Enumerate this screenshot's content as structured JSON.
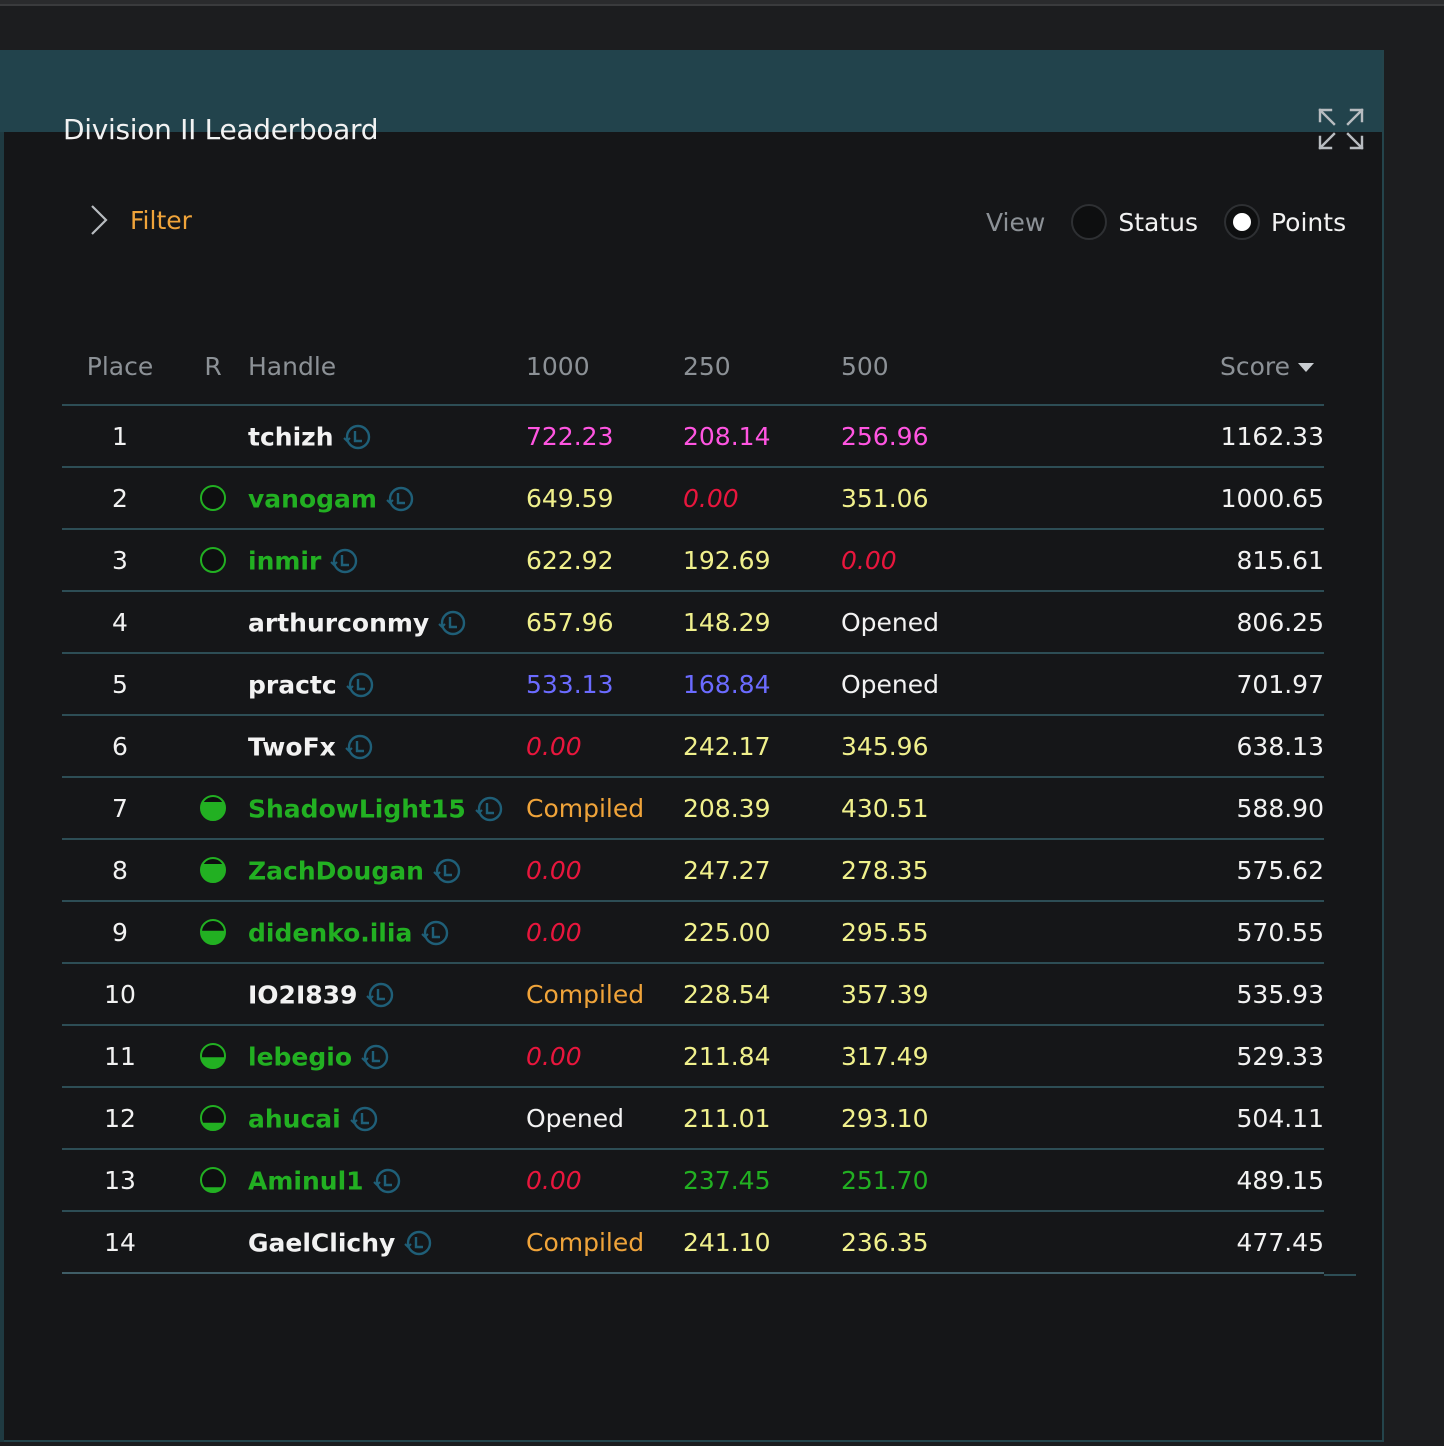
{
  "title": "Division II Leaderboard",
  "filter": {
    "label": "Filter"
  },
  "view": {
    "label": "View",
    "options": [
      {
        "label": "Status",
        "selected": false
      },
      {
        "label": "Points",
        "selected": true
      }
    ]
  },
  "columns": {
    "place": "Place",
    "r": "R",
    "handle": "Handle",
    "p1000": "1000",
    "p250": "250",
    "p500": "500",
    "score": "Score"
  },
  "colors": {
    "magenta": "#ff55e1",
    "yellow": "#f0f08c",
    "red": "#e8163d",
    "blue": "#6b6bff",
    "orange": "#f0a43a",
    "green": "#22b022",
    "white": "#f2f2f2",
    "accent": "#22434c"
  },
  "rows": [
    {
      "place": "1",
      "rating": "none",
      "handle": "tchizh",
      "handleColor": "white",
      "p1000": "722.23",
      "c1000": "magenta",
      "p250": "208.14",
      "c250": "magenta",
      "p500": "256.96",
      "c500": "magenta",
      "score": "1162.33"
    },
    {
      "place": "2",
      "rating": "full",
      "handle": "vanogam",
      "handleColor": "green",
      "p1000": "649.59",
      "c1000": "yellow",
      "p250": "0.00",
      "c250": "red",
      "p500": "351.06",
      "c500": "yellow",
      "score": "1000.65"
    },
    {
      "place": "3",
      "rating": "full",
      "handle": "inmir",
      "handleColor": "green",
      "p1000": "622.92",
      "c1000": "yellow",
      "p250": "192.69",
      "c250": "yellow",
      "p500": "0.00",
      "c500": "red",
      "score": "815.61"
    },
    {
      "place": "4",
      "rating": "none",
      "handle": "arthurconmy",
      "handleColor": "white",
      "p1000": "657.96",
      "c1000": "yellow",
      "p250": "148.29",
      "c250": "yellow",
      "p500": "Opened",
      "c500": "white",
      "score": "806.25"
    },
    {
      "place": "5",
      "rating": "none",
      "handle": "practc",
      "handleColor": "white",
      "p1000": "533.13",
      "c1000": "blue",
      "p250": "168.84",
      "c250": "blue",
      "p500": "Opened",
      "c500": "white",
      "score": "701.97"
    },
    {
      "place": "6",
      "rating": "none",
      "handle": "TwoFx",
      "handleColor": "white",
      "p1000": "0.00",
      "c1000": "red",
      "p250": "242.17",
      "c250": "yellow",
      "p500": "345.96",
      "c500": "yellow",
      "score": "638.13"
    },
    {
      "place": "7",
      "rating": "high",
      "handle": "ShadowLight15",
      "handleColor": "green",
      "p1000": "Compiled",
      "c1000": "orange",
      "p250": "208.39",
      "c250": "yellow",
      "p500": "430.51",
      "c500": "yellow",
      "score": "588.90"
    },
    {
      "place": "8",
      "rating": "high",
      "handle": "ZachDougan",
      "handleColor": "green",
      "p1000": "0.00",
      "c1000": "red",
      "p250": "247.27",
      "c250": "yellow",
      "p500": "278.35",
      "c500": "yellow",
      "score": "575.62"
    },
    {
      "place": "9",
      "rating": "mid",
      "handle": "didenko.ilia",
      "handleColor": "green",
      "p1000": "0.00",
      "c1000": "red",
      "p250": "225.00",
      "c250": "yellow",
      "p500": "295.55",
      "c500": "yellow",
      "score": "570.55"
    },
    {
      "place": "10",
      "rating": "none",
      "handle": "IO2I839",
      "handleColor": "white",
      "p1000": "Compiled",
      "c1000": "orange",
      "p250": "228.54",
      "c250": "yellow",
      "p500": "357.39",
      "c500": "yellow",
      "score": "535.93"
    },
    {
      "place": "11",
      "rating": "half",
      "handle": "lebegio",
      "handleColor": "green",
      "p1000": "0.00",
      "c1000": "red",
      "p250": "211.84",
      "c250": "yellow",
      "p500": "317.49",
      "c500": "yellow",
      "score": "529.33"
    },
    {
      "place": "12",
      "rating": "low",
      "handle": "ahucai",
      "handleColor": "green",
      "p1000": "Opened",
      "c1000": "white",
      "p250": "211.01",
      "c250": "yellow",
      "p500": "293.10",
      "c500": "yellow",
      "score": "504.11"
    },
    {
      "place": "13",
      "rating": "vlow",
      "handle": "Aminul1",
      "handleColor": "green",
      "p1000": "0.00",
      "c1000": "red",
      "p250": "237.45",
      "c250": "green",
      "p500": "251.70",
      "c500": "green",
      "score": "489.15"
    },
    {
      "place": "14",
      "rating": "none",
      "handle": "GaelClichy",
      "handleColor": "white",
      "p1000": "Compiled",
      "c1000": "orange",
      "p250": "241.10",
      "c250": "yellow",
      "p500": "236.35",
      "c500": "yellow",
      "score": "477.45"
    }
  ]
}
